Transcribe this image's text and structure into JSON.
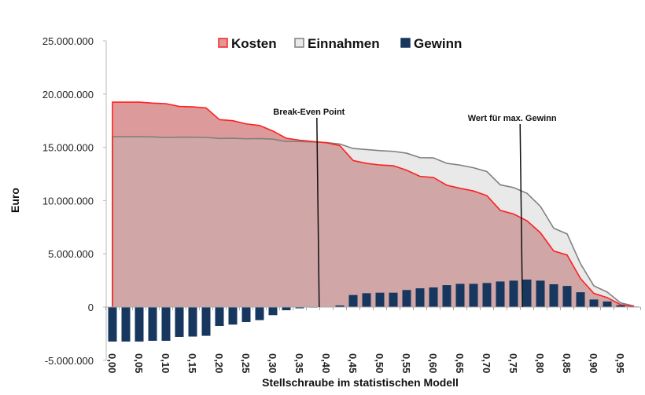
{
  "chart_data": {
    "type": "area",
    "title": "",
    "xlabel": "Stellschraube im statistischen Modell",
    "ylabel": "Euro",
    "ylim": [
      -5000000,
      25000000
    ],
    "xlim": [
      0,
      0.975
    ],
    "yticks": [
      25000000,
      20000000,
      15000000,
      10000000,
      5000000,
      0,
      -5000000
    ],
    "ytick_labels": [
      "25.000.000",
      "20.000.000",
      "15.000.000",
      "10.000.000",
      "5.000.000",
      "0",
      "-5.000.000"
    ],
    "xtick_labels": [
      "0,00",
      "0,05",
      "0,10",
      "0,15",
      "0,20",
      "0,25",
      "0,30",
      "0,35",
      "0,40",
      "0,45",
      "0,50",
      "0,55",
      "0,60",
      "0,65",
      "0,70",
      "0,75",
      "0,80",
      "0,85",
      "0,90",
      "0,95"
    ],
    "grid": false,
    "legend_position": "top",
    "x": [
      0,
      0.025,
      0.05,
      0.075,
      0.1,
      0.125,
      0.15,
      0.175,
      0.2,
      0.225,
      0.25,
      0.275,
      0.3,
      0.325,
      0.35,
      0.375,
      0.4,
      0.425,
      0.45,
      0.475,
      0.5,
      0.525,
      0.55,
      0.575,
      0.6,
      0.625,
      0.65,
      0.675,
      0.7,
      0.725,
      0.75,
      0.775,
      0.8,
      0.825,
      0.85,
      0.875,
      0.9,
      0.925,
      0.95,
      0.975
    ],
    "series": [
      {
        "name": "Kosten",
        "kind": "area",
        "color": "#ff2020",
        "fill": "#dc9a9a",
        "values": [
          19240000,
          19240000,
          19240000,
          19150000,
          19100000,
          18840000,
          18800000,
          18700000,
          17600000,
          17500000,
          17200000,
          17050000,
          16530000,
          15850000,
          15670000,
          15550000,
          15430000,
          15160000,
          13760000,
          13490000,
          13340000,
          13270000,
          12850000,
          12270000,
          12170000,
          11440000,
          11150000,
          10900000,
          10460000,
          9080000,
          8740000,
          8100000,
          6980000,
          5260000,
          4890000,
          2680000,
          1280000,
          890000,
          220000,
          50000
        ]
      },
      {
        "name": "Einnahmen",
        "kind": "area",
        "color": "#808080",
        "fill": "#e9e9e9",
        "values": [
          16000000,
          16000000,
          16000000,
          15980000,
          15930000,
          15950000,
          15950000,
          15930000,
          15830000,
          15850000,
          15800000,
          15820000,
          15770000,
          15550000,
          15550000,
          15500000,
          15450000,
          15310000,
          14890000,
          14790000,
          14690000,
          14620000,
          14450000,
          14030000,
          14010000,
          13500000,
          13330000,
          13080000,
          12720000,
          11480000,
          11220000,
          10680000,
          9460000,
          7400000,
          6870000,
          4070000,
          1990000,
          1410000,
          390000,
          100000
        ]
      },
      {
        "name": "Gewinn",
        "kind": "bar",
        "color": "#17375e",
        "values": [
          -3240000,
          -3240000,
          -3240000,
          -3170000,
          -3170000,
          -2800000,
          -2770000,
          -2700000,
          -1770000,
          -1650000,
          -1400000,
          -1230000,
          -760000,
          -300000,
          -120000,
          -50000,
          20000,
          150000,
          1130000,
          1300000,
          1350000,
          1350000,
          1600000,
          1760000,
          1840000,
          2060000,
          2180000,
          2180000,
          2260000,
          2400000,
          2480000,
          2580000,
          2480000,
          2140000,
          1980000,
          1390000,
          710000,
          520000,
          170000,
          50000
        ]
      }
    ],
    "annotations": [
      {
        "label": "Break-Even Point",
        "x": 0.385
      },
      {
        "label": "Wert für max. Gewinn",
        "x": 0.765
      }
    ],
    "overlap_fill": "#d0a6a6"
  }
}
